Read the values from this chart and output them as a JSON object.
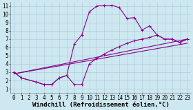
{
  "background_color": "#cde8f0",
  "grid_color": "#a8c8d8",
  "line_color": "#880088",
  "xlim": [
    -0.5,
    23.5
  ],
  "ylim": [
    0.5,
    11.5
  ],
  "xticks": [
    0,
    1,
    2,
    3,
    4,
    5,
    6,
    7,
    8,
    9,
    10,
    11,
    12,
    13,
    14,
    15,
    16,
    17,
    18,
    19,
    20,
    21,
    22,
    23
  ],
  "yticks": [
    1,
    2,
    3,
    4,
    5,
    6,
    7,
    8,
    9,
    10,
    11
  ],
  "xlabel": "Windchill (Refroidissement éolien,°C)",
  "tick_fontsize": 5.5,
  "xlabel_fontsize": 6.5,
  "line1_x": [
    0,
    1,
    3,
    4,
    5,
    6,
    7,
    8,
    9,
    10,
    11,
    12,
    13,
    14,
    15,
    16,
    17,
    18,
    19,
    20,
    21,
    22,
    23
  ],
  "line1_y": [
    3.0,
    2.3,
    1.8,
    1.5,
    1.5,
    2.3,
    2.6,
    6.4,
    7.5,
    10.3,
    11.0,
    11.1,
    11.1,
    10.8,
    9.5,
    9.6,
    8.1,
    8.6,
    7.5,
    7.0,
    7.0,
    6.6,
    7.0
  ],
  "line2_x": [
    0,
    1,
    3,
    4,
    5,
    6,
    7,
    8,
    9,
    10,
    11,
    12,
    13,
    14,
    15,
    16,
    17,
    18,
    19,
    20,
    21,
    22,
    23
  ],
  "line2_y": [
    3.0,
    2.3,
    1.8,
    1.5,
    1.5,
    2.3,
    2.6,
    1.5,
    1.5,
    4.0,
    4.7,
    5.2,
    5.7,
    6.1,
    6.5,
    6.8,
    7.0,
    7.2,
    7.5,
    7.0,
    7.0,
    6.6,
    7.0
  ],
  "line3_x": [
    0,
    23
  ],
  "line3_y": [
    2.8,
    7.0
  ],
  "line4_x": [
    0,
    23
  ],
  "line4_y": [
    2.8,
    6.5
  ]
}
